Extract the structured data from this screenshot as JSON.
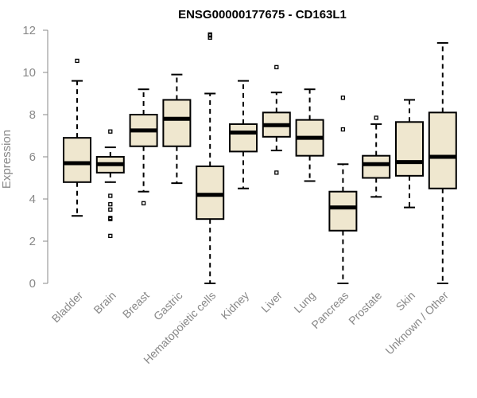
{
  "chart_data": {
    "type": "box",
    "title": "ENSG00000177675 - CD163L1",
    "xlabel": "",
    "ylabel": "Expression",
    "ylim": [
      0,
      12
    ],
    "yticks": [
      0,
      2,
      4,
      6,
      8,
      10,
      12
    ],
    "grid": false,
    "box_fill": "#efe7cf",
    "categories": [
      "Bladder",
      "Brain",
      "Breast",
      "Gastric",
      "Hematopoietic cells",
      "Kidney",
      "Liver",
      "Lung",
      "Pancreas",
      "Prostate",
      "Skin",
      "Unknown / Other"
    ],
    "boxes": [
      {
        "whisker_low": 3.2,
        "q1": 4.8,
        "median": 5.7,
        "q3": 6.9,
        "whisker_high": 9.6,
        "outliers": [
          10.55
        ]
      },
      {
        "whisker_low": 4.8,
        "q1": 5.25,
        "median": 5.65,
        "q3": 6.0,
        "whisker_high": 6.45,
        "outliers": [
          7.2,
          4.15,
          3.75,
          3.5,
          3.1,
          3.05,
          2.25
        ]
      },
      {
        "whisker_low": 4.35,
        "q1": 6.5,
        "median": 7.25,
        "q3": 8.0,
        "whisker_high": 9.2,
        "outliers": [
          3.8
        ]
      },
      {
        "whisker_low": 4.75,
        "q1": 6.5,
        "median": 7.8,
        "q3": 8.7,
        "whisker_high": 9.9,
        "outliers": []
      },
      {
        "whisker_low": 0.0,
        "q1": 3.05,
        "median": 4.2,
        "q3": 5.55,
        "whisker_high": 9.0,
        "outliers": [
          11.8,
          11.75,
          11.65
        ]
      },
      {
        "whisker_low": 4.5,
        "q1": 6.25,
        "median": 7.15,
        "q3": 7.55,
        "whisker_high": 9.6,
        "outliers": []
      },
      {
        "whisker_low": 6.3,
        "q1": 6.95,
        "median": 7.5,
        "q3": 8.1,
        "whisker_high": 9.05,
        "outliers": [
          10.25,
          5.25
        ]
      },
      {
        "whisker_low": 4.85,
        "q1": 6.05,
        "median": 6.9,
        "q3": 7.75,
        "whisker_high": 9.2,
        "outliers": []
      },
      {
        "whisker_low": 0.0,
        "q1": 2.5,
        "median": 3.6,
        "q3": 4.35,
        "whisker_high": 5.65,
        "outliers": [
          8.8,
          7.3
        ]
      },
      {
        "whisker_low": 4.1,
        "q1": 5.0,
        "median": 5.65,
        "q3": 6.05,
        "whisker_high": 7.55,
        "outliers": [
          7.85
        ]
      },
      {
        "whisker_low": 3.6,
        "q1": 5.1,
        "median": 5.75,
        "q3": 7.65,
        "whisker_high": 8.7,
        "outliers": []
      },
      {
        "whisker_low": 0.0,
        "q1": 4.5,
        "median": 6.0,
        "q3": 8.1,
        "whisker_high": 11.4,
        "outliers": []
      }
    ]
  }
}
